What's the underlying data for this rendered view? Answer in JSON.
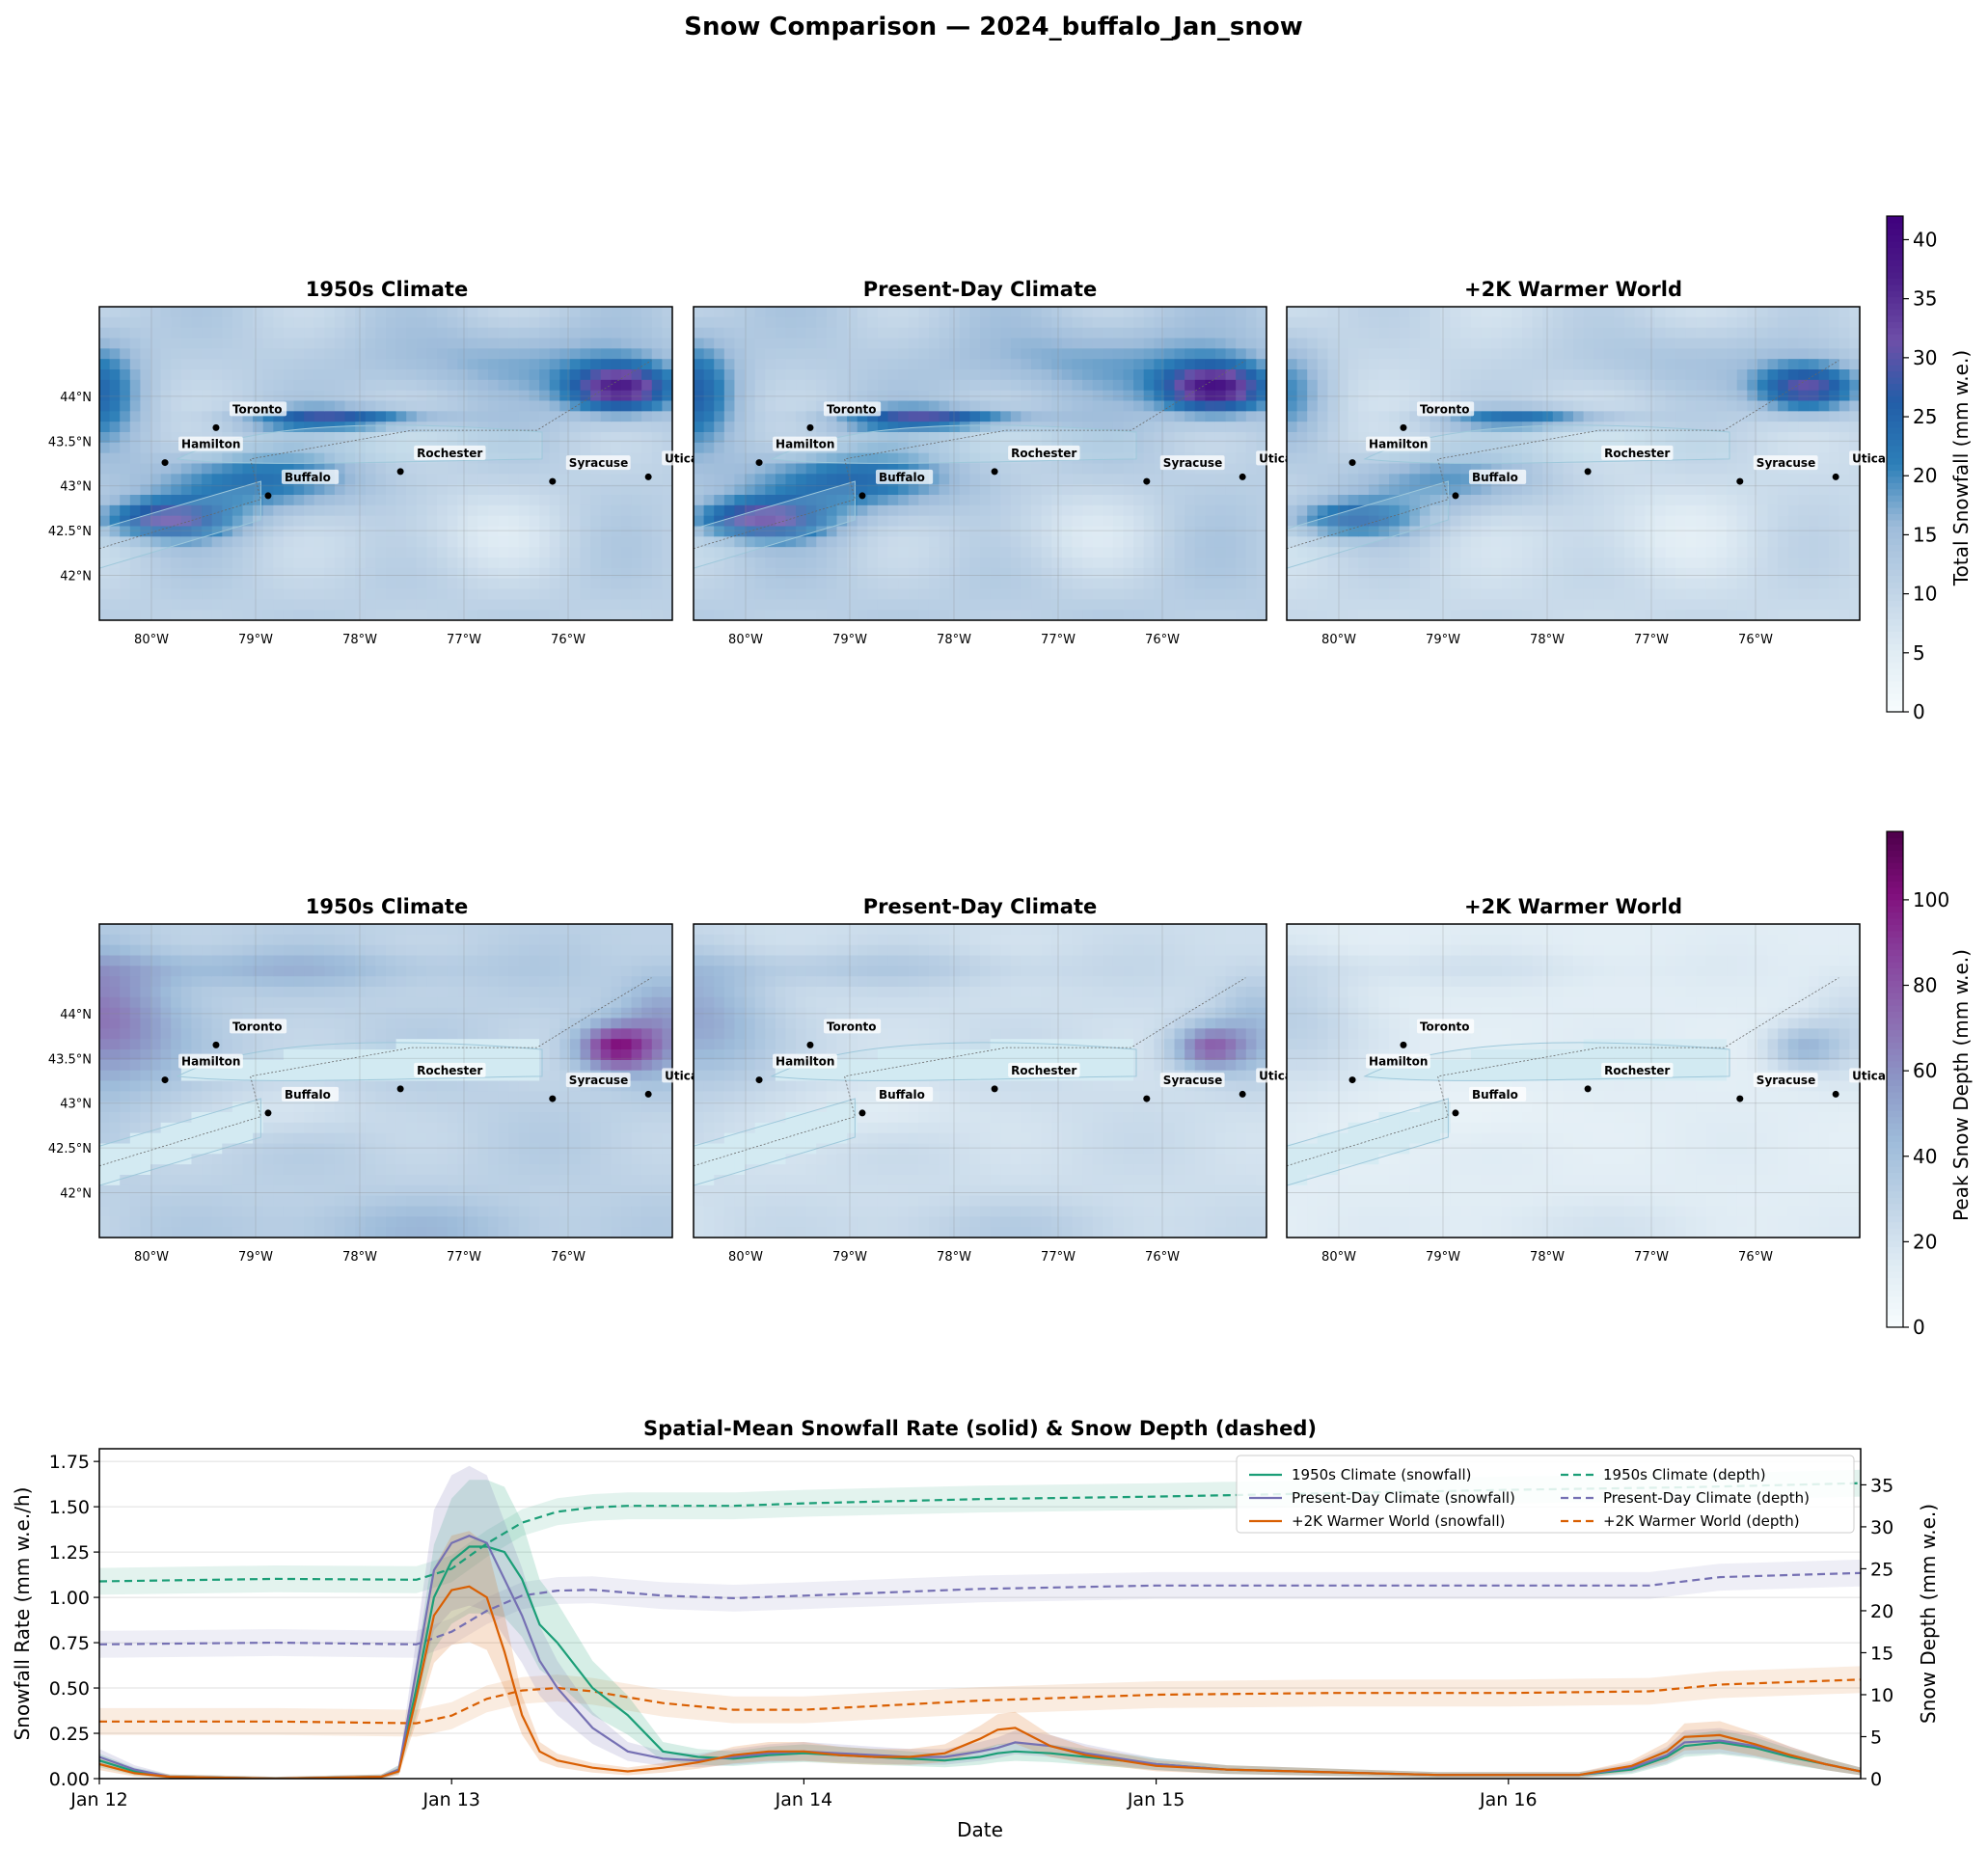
{
  "figure": {
    "title": "Snow Comparison — 2024_buffalo_Jan_snow"
  },
  "maps": {
    "scenarios": [
      "1950s Climate",
      "Present-Day Climate",
      "+2K Warmer World"
    ],
    "lon_ticks": [
      "80°W",
      "79°W",
      "78°W",
      "77°W",
      "76°W"
    ],
    "lon_values": [
      -80,
      -79,
      -78,
      -77,
      -76
    ],
    "lat_ticks": [
      "44°N",
      "43.5°N",
      "43°N",
      "42.5°N",
      "42°N"
    ],
    "lat_values": [
      44,
      43.5,
      43,
      42.5,
      42
    ],
    "extent": {
      "lon": [
        -80.5,
        -75
      ],
      "lat": [
        41.5,
        45
      ]
    },
    "cities": [
      {
        "name": "Toronto",
        "lon": -79.38,
        "lat": 43.65
      },
      {
        "name": "Hamilton",
        "lon": -79.87,
        "lat": 43.26
      },
      {
        "name": "Buffalo",
        "lon": -78.88,
        "lat": 42.89
      },
      {
        "name": "Rochester",
        "lon": -77.61,
        "lat": 43.16
      },
      {
        "name": "Syracuse",
        "lon": -76.15,
        "lat": 43.05
      },
      {
        "name": "Utica",
        "lon": -75.23,
        "lat": 43.1
      }
    ]
  },
  "snowfall_maps": {
    "colorbar_label": "Total Snowfall (mm w.e.)",
    "colorbar_ticks": [
      "0",
      "5",
      "10",
      "15",
      "20",
      "25",
      "30",
      "35",
      "40"
    ],
    "vmin": 0,
    "vmax": 42,
    "colormap": [
      "#f7fcfd",
      "#e0ecf4",
      "#bfd3e6",
      "#9ebcda",
      "#2c7fb8",
      "#225ea8",
      "#6e4fa8",
      "#4d1f8a",
      "#3f007d"
    ]
  },
  "depth_maps": {
    "colorbar_label": "Peak Snow Depth (mm w.e.)",
    "colorbar_ticks": [
      "0",
      "20",
      "40",
      "60",
      "80",
      "100"
    ],
    "vmin": 0,
    "vmax": 116,
    "colormap": [
      "#f7fcfd",
      "#e0ecf4",
      "#bfd3e6",
      "#9ebcda",
      "#8c96c6",
      "#8c6bb1",
      "#88419d",
      "#810f7c",
      "#4d004b"
    ]
  },
  "timeseries": {
    "title": "Spatial-Mean Snowfall Rate (solid) & Snow Depth (dashed)",
    "xlabel": "Date",
    "ylabel_left": "Snowfall Rate (mm w.e./h)",
    "ylabel_right": "Snow Depth (mm w.e.)",
    "x_ticks": [
      "Jan 12",
      "Jan 13",
      "Jan 14",
      "Jan 15",
      "Jan 16"
    ],
    "x_tick_values": [
      0,
      1,
      2,
      3,
      4
    ],
    "x_range_days": [
      0,
      5
    ],
    "y_left_ticks": [
      "0.00",
      "0.25",
      "0.50",
      "0.75",
      "1.00",
      "1.25",
      "1.50",
      "1.75"
    ],
    "y_left_values": [
      0,
      0.25,
      0.5,
      0.75,
      1.0,
      1.25,
      1.5,
      1.75
    ],
    "y_left_range": [
      0,
      1.82
    ],
    "y_right_ticks": [
      "0",
      "5",
      "10",
      "15",
      "20",
      "25",
      "30",
      "35"
    ],
    "y_right_values": [
      0,
      5,
      10,
      15,
      20,
      25,
      30,
      35
    ],
    "y_right_range": [
      0,
      39.3
    ],
    "legend_position": "top-right",
    "grid": true
  },
  "chart_data": {
    "type": "line",
    "x_unit": "days since Jan 12",
    "snowfall_series": [
      {
        "name": "1950s Climate (snowfall)",
        "color": "#1b9e77",
        "style": "solid",
        "x": [
          0,
          0.1,
          0.2,
          0.5,
          0.8,
          0.85,
          0.9,
          0.95,
          1.0,
          1.05,
          1.1,
          1.15,
          1.2,
          1.25,
          1.3,
          1.4,
          1.5,
          1.6,
          1.7,
          1.8,
          1.9,
          2.0,
          2.1,
          2.2,
          2.3,
          2.4,
          2.5,
          2.55,
          2.6,
          2.7,
          2.8,
          2.9,
          3.0,
          3.2,
          3.4,
          3.6,
          3.8,
          4.0,
          4.2,
          4.35,
          4.45,
          4.5,
          4.6,
          4.7,
          4.8,
          4.9,
          5.0
        ],
        "y": [
          0.1,
          0.04,
          0.01,
          0.0,
          0.01,
          0.05,
          0.5,
          1.0,
          1.2,
          1.28,
          1.28,
          1.25,
          1.1,
          0.85,
          0.75,
          0.5,
          0.35,
          0.15,
          0.12,
          0.11,
          0.13,
          0.14,
          0.13,
          0.12,
          0.11,
          0.1,
          0.12,
          0.14,
          0.15,
          0.14,
          0.12,
          0.1,
          0.08,
          0.05,
          0.04,
          0.03,
          0.02,
          0.02,
          0.02,
          0.05,
          0.12,
          0.18,
          0.2,
          0.17,
          0.12,
          0.08,
          0.04
        ]
      },
      {
        "name": "Present-Day Climate (snowfall)",
        "color": "#7570b3",
        "style": "solid",
        "x": [
          0,
          0.1,
          0.2,
          0.5,
          0.8,
          0.85,
          0.9,
          0.95,
          1.0,
          1.05,
          1.1,
          1.15,
          1.2,
          1.25,
          1.3,
          1.4,
          1.5,
          1.6,
          1.7,
          1.8,
          1.9,
          2.0,
          2.1,
          2.2,
          2.3,
          2.4,
          2.5,
          2.55,
          2.6,
          2.7,
          2.8,
          2.9,
          3.0,
          3.2,
          3.4,
          3.6,
          3.8,
          4.0,
          4.2,
          4.35,
          4.45,
          4.5,
          4.6,
          4.7,
          4.8,
          4.9,
          5.0
        ],
        "y": [
          0.12,
          0.05,
          0.01,
          0.0,
          0.01,
          0.05,
          0.6,
          1.15,
          1.3,
          1.34,
          1.3,
          1.1,
          0.9,
          0.65,
          0.5,
          0.28,
          0.15,
          0.11,
          0.1,
          0.12,
          0.14,
          0.15,
          0.14,
          0.13,
          0.12,
          0.12,
          0.15,
          0.17,
          0.2,
          0.18,
          0.14,
          0.11,
          0.08,
          0.05,
          0.04,
          0.03,
          0.02,
          0.02,
          0.02,
          0.06,
          0.13,
          0.2,
          0.21,
          0.18,
          0.13,
          0.08,
          0.04
        ]
      },
      {
        "name": "+2K Warmer World (snowfall)",
        "color": "#d95f02",
        "style": "solid",
        "x": [
          0,
          0.1,
          0.2,
          0.5,
          0.8,
          0.85,
          0.9,
          0.95,
          1.0,
          1.05,
          1.1,
          1.15,
          1.2,
          1.25,
          1.3,
          1.4,
          1.5,
          1.6,
          1.7,
          1.8,
          1.9,
          2.0,
          2.1,
          2.2,
          2.3,
          2.4,
          2.5,
          2.55,
          2.6,
          2.7,
          2.8,
          2.9,
          3.0,
          3.2,
          3.4,
          3.6,
          3.8,
          4.0,
          4.2,
          4.35,
          4.45,
          4.5,
          4.6,
          4.7,
          4.8,
          4.9,
          5.0
        ],
        "y": [
          0.08,
          0.03,
          0.01,
          0.0,
          0.01,
          0.04,
          0.45,
          0.9,
          1.04,
          1.06,
          1.0,
          0.7,
          0.35,
          0.15,
          0.1,
          0.06,
          0.04,
          0.06,
          0.09,
          0.13,
          0.15,
          0.15,
          0.13,
          0.12,
          0.12,
          0.14,
          0.22,
          0.27,
          0.28,
          0.18,
          0.13,
          0.1,
          0.07,
          0.05,
          0.04,
          0.03,
          0.02,
          0.02,
          0.02,
          0.07,
          0.15,
          0.23,
          0.24,
          0.19,
          0.13,
          0.08,
          0.04
        ]
      }
    ],
    "depth_series": [
      {
        "name": "1950s Climate (depth)",
        "color": "#1b9e77",
        "style": "dashed",
        "x": [
          0,
          0.5,
          0.9,
          1.0,
          1.1,
          1.2,
          1.3,
          1.4,
          1.5,
          1.8,
          2.0,
          2.5,
          3.0,
          3.5,
          4.0,
          4.5,
          5.0
        ],
        "y": [
          23.5,
          23.8,
          23.7,
          25.0,
          28.0,
          30.5,
          31.8,
          32.3,
          32.5,
          32.5,
          32.8,
          33.3,
          33.6,
          34.0,
          34.4,
          34.7,
          35.2
        ]
      },
      {
        "name": "Present-Day Climate (depth)",
        "color": "#7570b3",
        "style": "dashed",
        "x": [
          0,
          0.5,
          0.9,
          1.0,
          1.1,
          1.2,
          1.3,
          1.4,
          1.6,
          1.8,
          2.0,
          2.5,
          3.0,
          3.5,
          4.0,
          4.4,
          4.6,
          5.0
        ],
        "y": [
          16.0,
          16.2,
          16.0,
          17.5,
          20.0,
          21.8,
          22.4,
          22.5,
          21.8,
          21.5,
          21.8,
          22.6,
          23.0,
          23.0,
          23.0,
          23.0,
          24.0,
          24.5
        ]
      },
      {
        "name": "+2K Warmer World (depth)",
        "color": "#d95f02",
        "style": "dashed",
        "x": [
          0,
          0.5,
          0.9,
          1.0,
          1.1,
          1.2,
          1.3,
          1.4,
          1.6,
          1.8,
          2.0,
          2.5,
          3.0,
          3.5,
          4.0,
          4.4,
          4.6,
          5.0
        ],
        "y": [
          6.8,
          6.8,
          6.6,
          7.5,
          9.5,
          10.5,
          10.8,
          10.4,
          9.0,
          8.2,
          8.2,
          9.3,
          10.0,
          10.2,
          10.2,
          10.4,
          11.2,
          11.8
        ]
      }
    ]
  }
}
